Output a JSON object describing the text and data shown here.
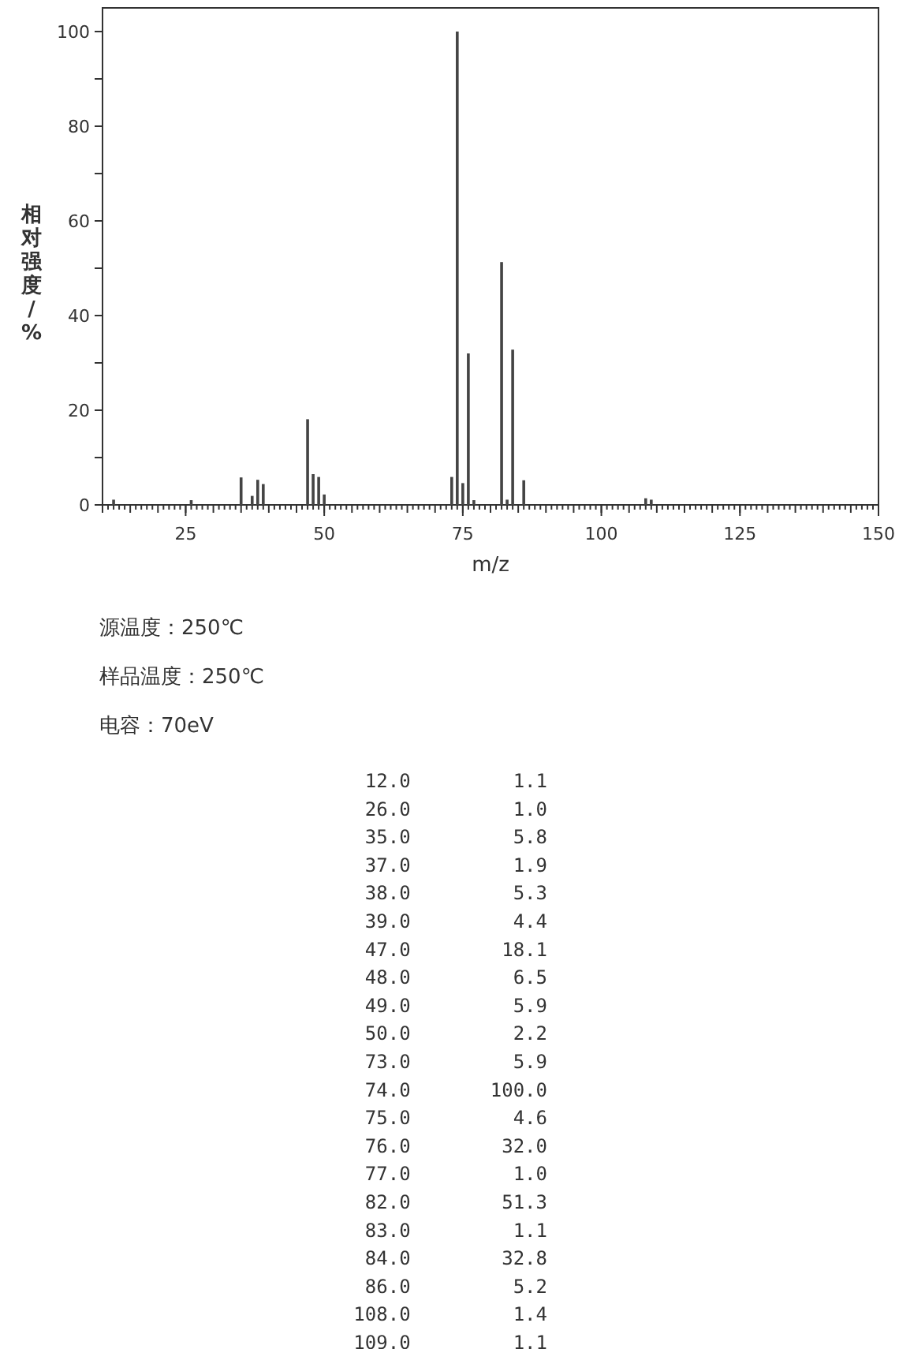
{
  "chart_data": [
    {
      "type": "bar",
      "x": [
        12,
        26,
        35,
        37,
        38,
        39,
        47,
        48,
        49,
        50,
        73,
        74,
        75,
        76,
        77,
        82,
        83,
        84,
        86,
        108,
        109
      ],
      "values": [
        1.1,
        1.0,
        5.8,
        1.9,
        5.3,
        4.4,
        18.1,
        6.5,
        5.9,
        2.2,
        5.9,
        100.0,
        4.6,
        32.0,
        1.0,
        51.3,
        1.1,
        32.8,
        5.2,
        1.4,
        1.1
      ],
      "color": "#444444",
      "xlabel": "m/z",
      "ylabel": "相对强度/%",
      "xlim": [
        10,
        150
      ],
      "xticks": [
        25,
        50,
        75,
        100,
        125,
        150
      ],
      "ylim": [
        0,
        105
      ],
      "yticks": [
        0,
        {
          "value": 10,
          "label": null
        },
        20,
        {
          "value": 30,
          "label": null
        },
        40,
        {
          "value": 50,
          "label": null
        },
        60,
        {
          "value": 70,
          "label": null
        },
        80,
        {
          "value": 90,
          "label": null
        },
        100
      ],
      "grid": false,
      "annotations": [
        "源温度：250℃",
        "样品温度：250℃",
        "电容：70eV"
      ]
    },
    {
      "type": "other",
      "annotations": [
        "12.0",
        "1.1",
        "26.0",
        "1.0",
        "35.0",
        "5.8",
        "37.0",
        "1.9",
        "38.0",
        "5.3",
        "39.0",
        "4.4",
        "47.0",
        "18.1",
        "48.0",
        "6.5",
        "49.0",
        "5.9",
        "50.0",
        "2.2",
        "73.0",
        "5.9",
        "74.0",
        "100.0",
        "75.0",
        "4.6",
        "76.0",
        "32.0",
        "77.0",
        "1.0",
        "82.0",
        "51.3",
        "83.0",
        "1.1",
        "84.0",
        "32.8",
        "86.0",
        "5.2",
        "108.0",
        "1.4",
        "109.0",
        "1.1"
      ]
    }
  ]
}
